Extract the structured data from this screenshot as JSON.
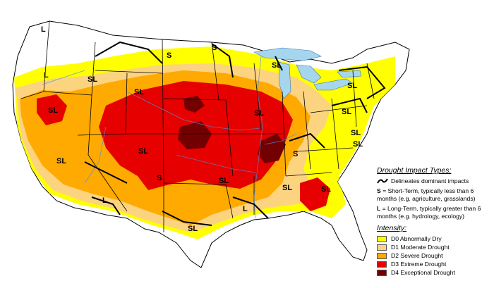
{
  "legend": {
    "impact_title": "Drought Impact Types:",
    "impact_line_label": "Delineates dominant impacts",
    "short_term": {
      "key": "S",
      "text": "= Short-Term, typically less than 6 months (e.g. agriculture, grasslands)"
    },
    "long_term": {
      "key": "L",
      "text": "= Long-Term, typically greater than 6 months (e.g. hydrology, ecology)"
    },
    "intensity_title": "Intensity:",
    "categories": [
      {
        "label": "D0 Abnormally Dry",
        "color": "#ffff00"
      },
      {
        "label": "D1 Moderate Drought",
        "color": "#fcd37f"
      },
      {
        "label": "D2 Severe Drought",
        "color": "#ffaa00"
      },
      {
        "label": "D3 Extreme Drought",
        "color": "#e60000"
      },
      {
        "label": "D4 Exceptional Drought",
        "color": "#730000"
      }
    ]
  },
  "impact_labels": [
    "L",
    "L",
    "S",
    "S",
    "SL",
    "SL",
    "SL",
    "SL",
    "SL",
    "SL",
    "SL",
    "SL",
    "S",
    "SL",
    "SL",
    "S",
    "SL",
    "L",
    "L",
    "SL",
    "SL",
    "SL",
    "SL"
  ],
  "colors": {
    "land": "#ffffff",
    "water": "#a6d6ee",
    "border": "#000000",
    "river": "#4a90d9"
  }
}
